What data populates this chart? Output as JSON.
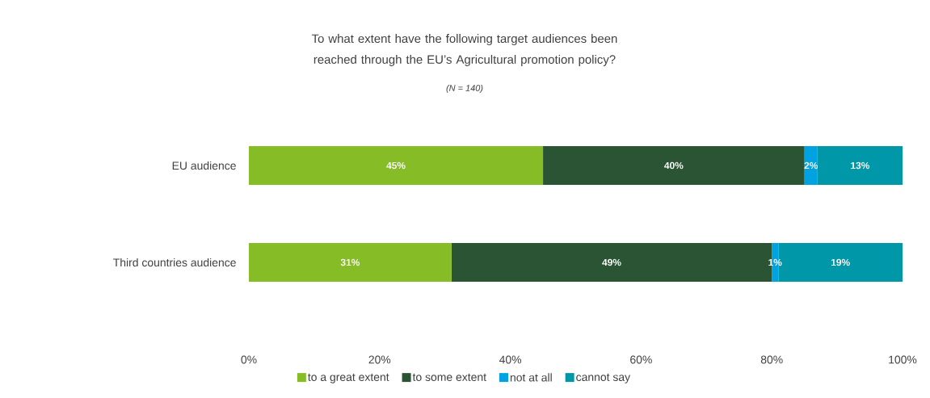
{
  "chart_data": {
    "type": "bar",
    "orientation": "horizontal",
    "stacked": true,
    "title": "To what extent have the following target audiences been reached through the EU’s Agricultural promotion policy?",
    "subtitle": "(N = 140)",
    "categories": [
      "EU audience",
      "Third countries audience"
    ],
    "series": [
      {
        "name": "to a great extent",
        "color": "#86bc25",
        "values": [
          45,
          31
        ],
        "value_labels": [
          "45%",
          "31%"
        ]
      },
      {
        "name": "to some extent",
        "color": "#2b5434",
        "values": [
          40,
          49
        ],
        "value_labels": [
          "40%",
          "49%"
        ]
      },
      {
        "name": "not at all",
        "color": "#00a3e0",
        "values": [
          2,
          1
        ],
        "value_labels": [
          "2%",
          "1%"
        ]
      },
      {
        "name": "cannot say",
        "color": "#0097a9",
        "values": [
          13,
          19
        ],
        "value_labels": [
          "13%",
          "19%"
        ]
      }
    ],
    "xlim": [
      0,
      100
    ],
    "xticks": [
      {
        "value": 0,
        "label": "0%"
      },
      {
        "value": 20,
        "label": "20%"
      },
      {
        "value": 40,
        "label": "40%"
      },
      {
        "value": 60,
        "label": "60%"
      },
      {
        "value": 80,
        "label": "80%"
      },
      {
        "value": 100,
        "label": "100%"
      }
    ],
    "grid": false,
    "legend": "bottom"
  }
}
